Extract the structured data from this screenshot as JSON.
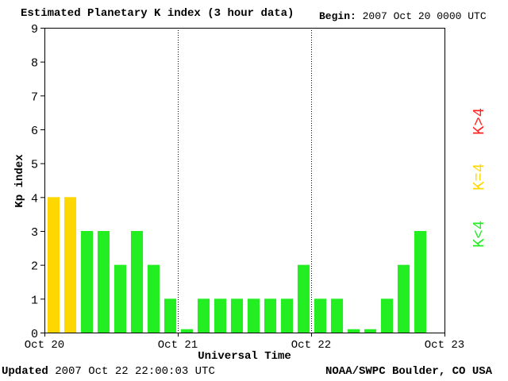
{
  "header": {
    "title": "Estimated Planetary K index (3 hour data)",
    "begin_label": "Begin:",
    "begin_value": "2007 Oct 20 0000 UTC"
  },
  "footer": {
    "updated_label": "Updated",
    "updated_value": "2007 Oct 22 22:00:03 UTC",
    "source": "NOAA/SWPC Boulder, CO USA"
  },
  "legend": [
    {
      "label": "K<4",
      "color": "#22ee22"
    },
    {
      "label": "K=4",
      "color": "#ffd700"
    },
    {
      "label": "K>4",
      "color": "#ff2222"
    }
  ],
  "chart_data": {
    "type": "bar",
    "title": "Estimated Planetary K index (3 hour data)",
    "xlabel": "Universal Time",
    "ylabel": "Kp index",
    "ylim": [
      0,
      9
    ],
    "yticks": [
      0,
      1,
      2,
      3,
      4,
      5,
      6,
      7,
      8,
      9
    ],
    "xtick_labels": [
      "Oct 20",
      "Oct 21",
      "Oct 22",
      "Oct 23"
    ],
    "day_separators": [
      "Oct 21",
      "Oct 22"
    ],
    "interval_hours": 3,
    "values": [
      4,
      4,
      3,
      3,
      2,
      3,
      2,
      1,
      0.1,
      1,
      1,
      1,
      1,
      1,
      1,
      2,
      1,
      1,
      0.1,
      0.1,
      1,
      2,
      3
    ],
    "colors": {
      "below_4": "#22ee22",
      "equal_4": "#ffd700",
      "above_4": "#ff2222"
    },
    "grid": false
  }
}
